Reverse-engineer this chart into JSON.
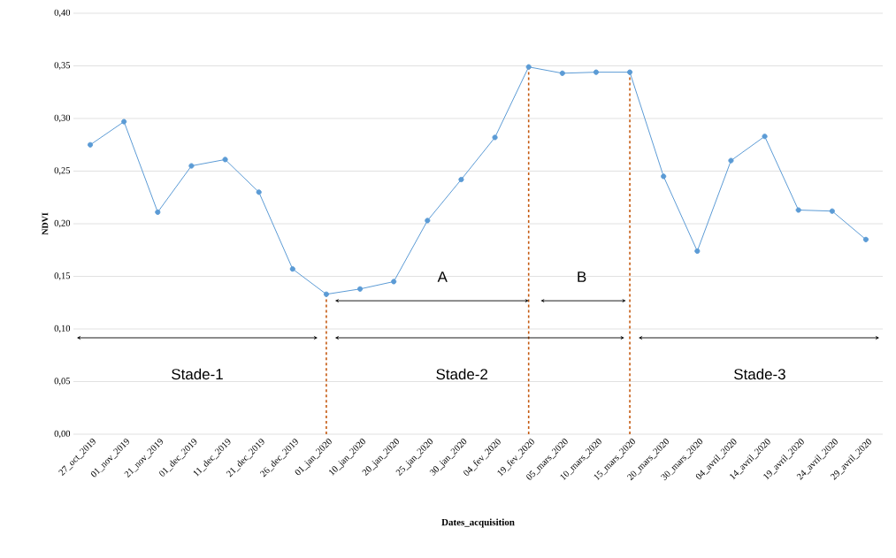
{
  "chart_data": {
    "type": "line",
    "xlabel": "Dates_acquisition",
    "ylabel": "NDVI",
    "categories": [
      "27_oct_2019",
      "01_nov_2019",
      "21_nov_2019",
      "01_dec_2019",
      "11_dec_2019",
      "21_dec_2019",
      "26_dec_2019",
      "01_jan_2020",
      "10_jan_2020",
      "20_jan_2020",
      "25_jan_2020",
      "30_jan_2020",
      "04_fev_2020",
      "19_fev_2020",
      "05_mars_2020",
      "10_mars_2020",
      "15_mars_2020",
      "20_mars_2020",
      "30_mars_2020",
      "04_avril_2020",
      "14_avril_2020",
      "19_avril_2020",
      "24_avril_2020",
      "29_avril_2020"
    ],
    "series": [
      {
        "color": "#5b9bd5",
        "values": [
          0.275,
          0.297,
          0.211,
          0.255,
          0.261,
          0.23,
          0.157,
          0.133,
          0.138,
          0.145,
          0.203,
          0.242,
          0.282,
          0.349,
          0.343,
          0.344,
          0.344,
          0.245,
          0.174,
          0.26,
          0.283,
          0.213,
          0.212,
          0.185
        ]
      }
    ],
    "ylim": [
      0,
      0.4
    ],
    "yticks": [
      {
        "value": 0,
        "label": "0,00"
      },
      {
        "value": 0.05,
        "label": "0,05"
      },
      {
        "value": 0.1,
        "label": "0,10"
      },
      {
        "value": 0.15,
        "label": "0,15"
      },
      {
        "value": 0.2,
        "label": "0,20"
      },
      {
        "value": 0.25,
        "label": "0,25"
      },
      {
        "value": 0.3,
        "label": "0,30"
      },
      {
        "value": 0.35,
        "label": "0,35"
      },
      {
        "value": 0.4,
        "label": "0,40"
      }
    ],
    "grid": "y",
    "marker": "circle",
    "line_style": "solid",
    "ref_lines": [
      {
        "axis": "x",
        "value": "01_jan_2020",
        "color": "#c55a11",
        "line_style": "dashed"
      },
      {
        "axis": "x",
        "value": "19_fev_2020",
        "color": "#c55a11",
        "line_style": "dashed"
      },
      {
        "axis": "x",
        "value": "15_mars_2020",
        "color": "#c55a11",
        "line_style": "dashed"
      }
    ],
    "annotations": [
      "A",
      "B",
      "Stade-1",
      "Stade-2",
      "Stade-3"
    ]
  }
}
